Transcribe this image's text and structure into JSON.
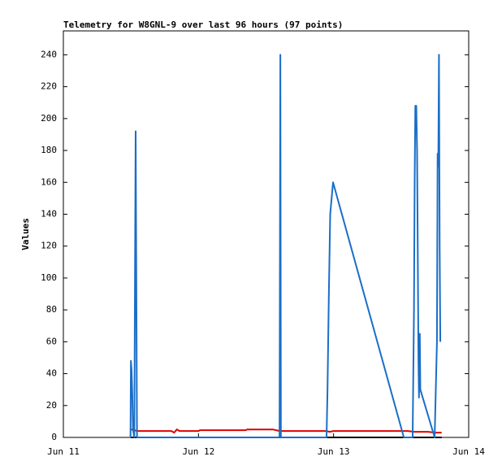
{
  "chart_data": {
    "type": "line",
    "title": "Telemetry for W8GNL-9 over last 96 hours (97 points)",
    "ylabel": "Values",
    "xlim": [
      0,
      3
    ],
    "xticks": [
      {
        "value": 0,
        "label": "Jun 11"
      },
      {
        "value": 1,
        "label": "Jun 12"
      },
      {
        "value": 2,
        "label": "Jun 13"
      },
      {
        "value": 3,
        "label": "Jun 14"
      }
    ],
    "ylim": [
      0,
      255
    ],
    "yticks": [
      0,
      20,
      40,
      60,
      80,
      100,
      120,
      140,
      160,
      180,
      200,
      220,
      240
    ],
    "series": [
      {
        "color": "#000000",
        "x": [
          0.5,
          2.8
        ],
        "values": [
          0,
          0
        ]
      },
      {
        "color": "#e00000",
        "x": [
          0.5,
          0.55,
          0.8,
          0.82,
          0.84,
          0.86,
          1.0,
          1.01,
          1.35,
          1.36,
          1.55,
          1.6,
          1.95,
          1.97,
          2.0,
          2.55,
          2.6,
          2.7,
          2.75,
          2.8
        ],
        "values": [
          5,
          4,
          4,
          3,
          5,
          4,
          4,
          4.5,
          4.5,
          5,
          5,
          4,
          4,
          3.5,
          4,
          4,
          3.5,
          3.5,
          3,
          3
        ]
      },
      {
        "color": "#1a6ec8",
        "x": [
          0.497,
          0.5,
          0.505,
          0.51,
          0.515,
          0.525,
          0.535,
          0.54,
          0.545,
          1.6,
          1.603,
          1.606,
          1.61,
          1.948,
          1.955,
          1.965,
          1.975,
          1.996,
          2.52,
          2.585,
          2.595,
          2.6,
          2.605,
          2.612,
          2.618,
          2.622,
          2.628,
          2.632,
          2.638,
          2.642,
          2.748,
          2.765,
          2.77,
          2.775,
          2.78,
          2.785,
          2.79
        ],
        "values": [
          0,
          48,
          42,
          28,
          5,
          0,
          192,
          97,
          0,
          0,
          120,
          240,
          0,
          0,
          30,
          90,
          140,
          160,
          0,
          0,
          80,
          160,
          208,
          208,
          180,
          130,
          50,
          25,
          65,
          30,
          0,
          60,
          178,
          170,
          240,
          120,
          60
        ]
      }
    ]
  }
}
